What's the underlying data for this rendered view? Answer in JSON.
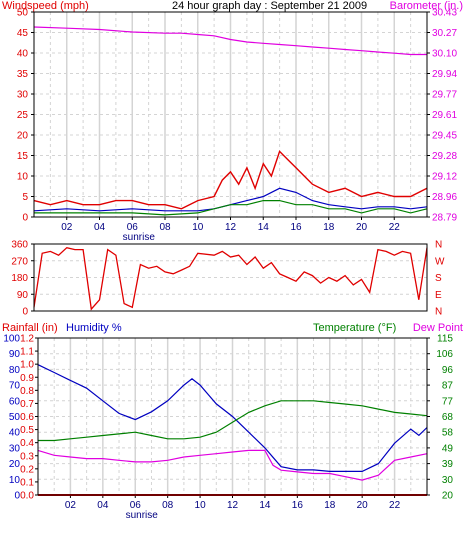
{
  "chart_data": [
    {
      "type": "line",
      "title": "24 hour graph day : September 21 2009",
      "left_axis": {
        "label": "Windspeed (mph)",
        "range": [
          0,
          50
        ],
        "ticks": [
          0,
          5,
          10,
          15,
          20,
          25,
          30,
          35,
          40,
          45,
          50
        ],
        "color": "#e00000"
      },
      "right_axis": {
        "label": "Barometer (in.)",
        "range": [
          28.79,
          30.43
        ],
        "ticks": [
          "28.79",
          "28.96",
          "29.12",
          "29.28",
          "29.45",
          "29.61",
          "29.77",
          "29.94",
          "30.10",
          "30.27",
          "30.43"
        ],
        "color": "#e000e0"
      },
      "x_ticks": [
        "02",
        "04",
        "06",
        "08",
        "10",
        "12",
        "14",
        "16",
        "18",
        "20",
        "22"
      ],
      "x_annotation": "sunrise",
      "grid": true,
      "series": [
        {
          "name": "Barometer (in.)",
          "axis": "right",
          "color": "#e000e0",
          "x": [
            0,
            2,
            4,
            6,
            8,
            9,
            10,
            11,
            12,
            13,
            14,
            15,
            16,
            17,
            18,
            19,
            20,
            21,
            22,
            23,
            24
          ],
          "y": [
            30.31,
            30.3,
            30.29,
            30.27,
            30.26,
            30.26,
            30.25,
            30.24,
            30.21,
            30.19,
            30.18,
            30.17,
            30.16,
            30.15,
            30.14,
            30.13,
            30.12,
            30.11,
            30.1,
            30.09,
            30.09
          ]
        },
        {
          "color": "#e00000",
          "axis": "left",
          "x": [
            0,
            1,
            2,
            3,
            4,
            5,
            6,
            7,
            8,
            9,
            10,
            11,
            11.5,
            12,
            12.5,
            13,
            13.5,
            14,
            14.5,
            15,
            15.5,
            16,
            16.5,
            17,
            18,
            19,
            20,
            21,
            22,
            23,
            24
          ],
          "y": [
            4,
            3,
            4,
            3,
            3,
            4,
            4,
            3,
            3,
            2,
            4,
            5,
            9,
            11,
            8,
            12,
            7,
            13,
            10,
            16,
            14,
            12,
            10,
            8,
            6,
            7,
            5,
            6,
            5,
            5,
            7
          ]
        },
        {
          "color": "#0000c0",
          "axis": "left",
          "x": [
            0,
            2,
            4,
            6,
            8,
            10,
            11,
            12,
            13,
            14,
            15,
            16,
            17,
            18,
            19,
            20,
            21,
            22,
            23,
            24
          ],
          "y": [
            1.5,
            2,
            1.5,
            2,
            1.5,
            1.5,
            2,
            3,
            4,
            5,
            7,
            6,
            4,
            3,
            2.5,
            2,
            2.5,
            2.5,
            2,
            2.5
          ]
        },
        {
          "color": "#008000",
          "axis": "left",
          "x": [
            0,
            2,
            4,
            6,
            8,
            10,
            11,
            12,
            13,
            14,
            15,
            16,
            17,
            18,
            19,
            20,
            21,
            22,
            23,
            24
          ],
          "y": [
            1,
            1,
            1,
            1,
            0.5,
            1,
            2,
            3,
            3,
            4,
            4,
            3,
            3,
            2,
            2,
            1,
            2,
            2,
            1,
            2
          ]
        }
      ]
    },
    {
      "type": "line",
      "left_ticks": [
        "360",
        "270",
        "180",
        "90",
        "0"
      ],
      "right_ticks": [
        "N",
        "W",
        "S",
        "E",
        "N"
      ],
      "range": [
        0,
        360
      ],
      "color": "#e00000",
      "x": [
        0,
        0.5,
        1,
        1.5,
        2,
        2.5,
        3,
        3.5,
        4,
        4.5,
        5,
        5.5,
        6,
        6.5,
        7,
        7.5,
        8,
        8.5,
        9,
        9.5,
        10,
        11,
        11.5,
        12,
        12.5,
        13,
        13.5,
        14,
        14.5,
        15,
        15.5,
        16,
        16.5,
        17,
        17.5,
        18,
        18.5,
        19,
        19.5,
        20,
        20.5,
        21,
        21.5,
        22,
        22.5,
        23,
        23.5,
        24
      ],
      "y": [
        20,
        310,
        320,
        300,
        340,
        330,
        330,
        10,
        60,
        330,
        300,
        40,
        20,
        250,
        230,
        240,
        210,
        200,
        220,
        240,
        310,
        300,
        320,
        290,
        300,
        250,
        290,
        230,
        260,
        200,
        180,
        160,
        210,
        190,
        150,
        180,
        160,
        190,
        140,
        170,
        100,
        330,
        320,
        300,
        320,
        310,
        60,
        340
      ]
    },
    {
      "type": "line",
      "left_axis_1": {
        "label": "Rainfall (in)",
        "ticks": [
          "0.0",
          "0.1",
          "0.2",
          "0.3",
          "0.4",
          "0.5",
          "0.6",
          "0.7",
          "0.8",
          "0.9",
          "1.0",
          "1.1",
          "1.2"
        ],
        "range": [
          0,
          1.2
        ],
        "color": "#e00000"
      },
      "left_axis_2": {
        "label": "Humidity %",
        "ticks": [
          "0",
          "10",
          "20",
          "30",
          "40",
          "50",
          "60",
          "70",
          "80",
          "90",
          "100"
        ],
        "range": [
          0,
          100
        ],
        "color": "#0000c0"
      },
      "right_axis": {
        "label": "Temperature (°F)",
        "label2": "Dew Point",
        "ticks": [
          "20",
          "30",
          "39",
          "49",
          "58",
          "68",
          "77",
          "87",
          "96",
          "106",
          "115"
        ],
        "range": [
          20,
          115
        ],
        "color": "#008000",
        "color2": "#e000e0"
      },
      "x_ticks": [
        "02",
        "04",
        "06",
        "08",
        "10",
        "12",
        "14",
        "16",
        "18",
        "20",
        "22"
      ],
      "x_annotation": "sunrise",
      "grid": true,
      "series": [
        {
          "name": "Humidity %",
          "axis": "humidity",
          "color": "#0000c0",
          "x": [
            0,
            1,
            2,
            3,
            4,
            5,
            6,
            7,
            8,
            9,
            9.5,
            10,
            10.5,
            11,
            12,
            13,
            14,
            14.5,
            15,
            16,
            17,
            18,
            19,
            20,
            21,
            22,
            23,
            23.5,
            24
          ],
          "y": [
            83,
            78,
            73,
            68,
            60,
            52,
            48,
            53,
            60,
            70,
            74,
            70,
            64,
            58,
            50,
            40,
            30,
            24,
            18,
            16,
            16,
            15,
            15,
            15,
            20,
            33,
            42,
            38,
            43
          ]
        },
        {
          "name": "Temperature (°F)",
          "axis": "temp",
          "color": "#008000",
          "x": [
            0,
            1,
            2,
            3,
            4,
            5,
            6,
            7,
            8,
            9,
            10,
            11,
            12,
            13,
            14,
            15,
            16,
            17,
            18,
            19,
            20,
            21,
            22,
            23,
            24
          ],
          "y": [
            53,
            53,
            54,
            55,
            56,
            57,
            58,
            56,
            54,
            54,
            55,
            58,
            64,
            70,
            74,
            77,
            77,
            77,
            76,
            75,
            74,
            72,
            70,
            69,
            68
          ]
        },
        {
          "name": "Dew Point",
          "axis": "temp",
          "color": "#e000e0",
          "x": [
            0,
            1,
            2,
            3,
            4,
            5,
            6,
            7,
            8,
            9,
            10,
            11,
            12,
            13,
            14,
            14.5,
            15,
            16,
            17,
            18,
            19,
            20,
            21,
            22,
            23,
            24
          ],
          "y": [
            47,
            44,
            43,
            42,
            42,
            41,
            40,
            40,
            41,
            43,
            44,
            45,
            46,
            47,
            47,
            38,
            35,
            34,
            33,
            33,
            31,
            29,
            32,
            41,
            43,
            45
          ]
        },
        {
          "name": "Rainfall (in)",
          "axis": "rain",
          "color": "#e00000",
          "x": [
            0,
            24
          ],
          "y": [
            0,
            0
          ]
        }
      ]
    }
  ]
}
